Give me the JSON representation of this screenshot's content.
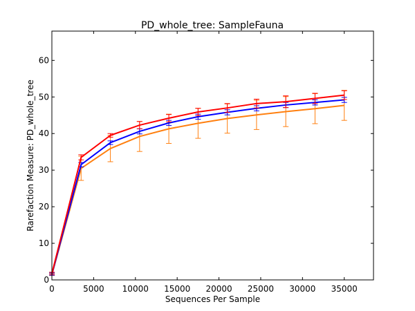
{
  "chart_data": {
    "type": "line",
    "title": "PD_whole_tree: SampleFauna",
    "xlabel": "Sequences Per Sample",
    "ylabel": "Rarefaction Measure: PD_whole_tree",
    "xlim": [
      0,
      38500
    ],
    "ylim": [
      0,
      68
    ],
    "xticks": [
      0,
      5000,
      10000,
      15000,
      20000,
      25000,
      30000,
      35000
    ],
    "yticks": [
      0,
      10,
      20,
      30,
      40,
      50,
      60
    ],
    "x": [
      10,
      3500,
      7000,
      10500,
      14000,
      17500,
      21000,
      24500,
      28000,
      31500,
      35000
    ],
    "grid": false,
    "series": [
      {
        "color": "#ff0000",
        "values": [
          1.8,
          33.5,
          39.5,
          42.3,
          44.2,
          45.9,
          47.0,
          48.2,
          48.7,
          49.6,
          50.5
        ],
        "errors": [
          0.3,
          0.7,
          0.5,
          1.0,
          1.0,
          1.0,
          1.2,
          1.2,
          1.6,
          1.4,
          1.2
        ]
      },
      {
        "color": "#0000ff",
        "values": [
          1.6,
          31.5,
          37.5,
          40.6,
          42.9,
          44.6,
          45.8,
          46.9,
          47.8,
          48.5,
          49.2
        ],
        "errors": [
          0.3,
          0.6,
          0.5,
          0.7,
          0.7,
          0.7,
          0.7,
          0.7,
          0.7,
          0.7,
          0.7
        ]
      },
      {
        "color": "#ff7f0e",
        "values": [
          1.5,
          30.5,
          35.9,
          39.2,
          41.3,
          42.8,
          44.1,
          45.1,
          46.0,
          46.8,
          47.7
        ],
        "errors": [
          0.3,
          3.3,
          3.6,
          4.1,
          4.0,
          4.1,
          4.0,
          4.0,
          4.1,
          4.1,
          4.1
        ]
      }
    ]
  }
}
